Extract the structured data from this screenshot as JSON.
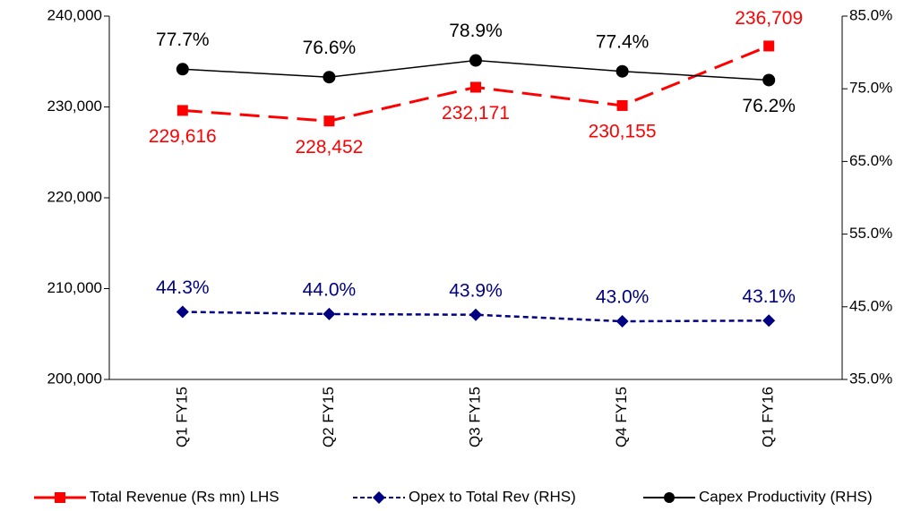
{
  "chart_data": {
    "type": "line",
    "categories": [
      "Q1 FY15",
      "Q2 FY15",
      "Q3 FY15",
      "Q4 FY15",
      "Q1 FY16"
    ],
    "series": [
      {
        "name": "Total Revenue (Rs mn) LHS",
        "color": "#ff0000",
        "axis": "y",
        "dash": "22,10",
        "marker": "square",
        "values": [
          229616,
          228452,
          232171,
          230155,
          236709
        ],
        "value_labels": [
          "229,616",
          "228,452",
          "232,171",
          "230,155",
          "236,709"
        ]
      },
      {
        "name": "Opex to Total Rev (RHS)",
        "color": "#000080",
        "axis": "y2",
        "dash": "6,4",
        "marker": "diamond",
        "values": [
          44.3,
          44.0,
          43.9,
          43.0,
          43.1
        ],
        "value_labels": [
          "44.3%",
          "44.0%",
          "43.9%",
          "43.0%",
          "43.1%"
        ]
      },
      {
        "name": "Capex Productivity (RHS)",
        "color": "#000000",
        "axis": "y2",
        "marker": "circle",
        "values": [
          77.7,
          76.6,
          78.9,
          77.4,
          76.2
        ],
        "value_labels": [
          "77.7%",
          "76.6%",
          "78.9%",
          "77.4%",
          "76.2%"
        ]
      }
    ],
    "ylim": [
      200000,
      240000
    ],
    "yticks": [
      {
        "value": 200000,
        "label": "200,000"
      },
      {
        "value": 210000,
        "label": "210,000"
      },
      {
        "value": 220000,
        "label": "220,000"
      },
      {
        "value": 230000,
        "label": "230,000"
      },
      {
        "value": 240000,
        "label": "240,000"
      }
    ],
    "y2lim": [
      35,
      85
    ],
    "y2ticks": [
      {
        "value": 35,
        "label": "35.0%"
      },
      {
        "value": 45,
        "label": "45.0%"
      },
      {
        "value": 55,
        "label": "55.0%"
      },
      {
        "value": 65,
        "label": "65.0%"
      },
      {
        "value": 75,
        "label": "75.0%"
      },
      {
        "value": 85,
        "label": "85.0%"
      }
    ],
    "grid": false,
    "legend": "bottom"
  }
}
